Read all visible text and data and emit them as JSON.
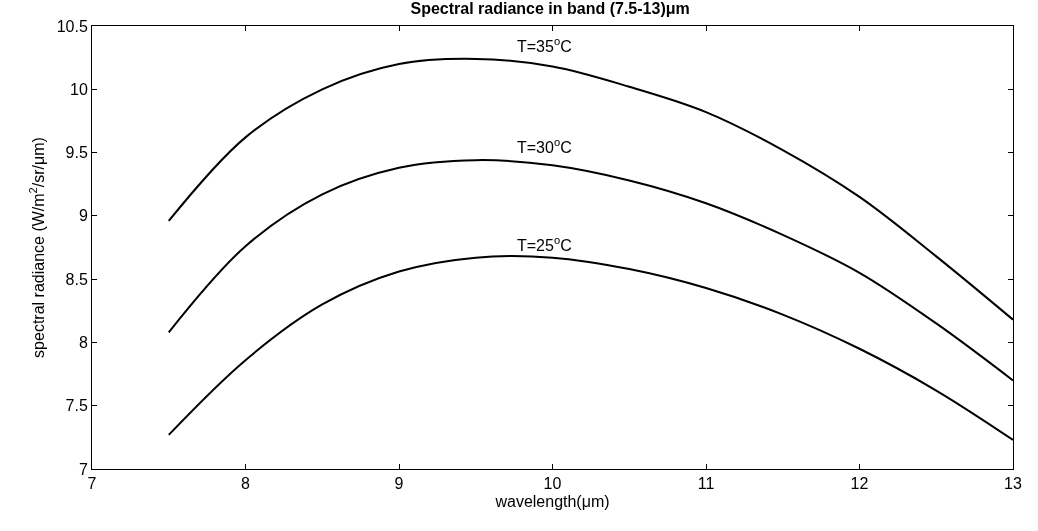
{
  "chart_data": {
    "type": "line",
    "title": "Spectral radiance in band (7.5-13)μm",
    "xlabel": "wavelength(μm)",
    "ylabel": "spectral radiance (W/m$^{2}$/sr/μm)",
    "x": [
      7.5,
      8,
      8.5,
      9,
      9.5,
      10,
      10.5,
      11,
      11.5,
      12,
      12.5,
      13
    ],
    "series": [
      {
        "name": "T=35$^{o}$C",
        "color": "#000000",
        "values": [
          8.96,
          9.62,
          10.0,
          10.2,
          10.24,
          10.18,
          10.02,
          9.82,
          9.52,
          9.15,
          8.68,
          8.18
        ]
      },
      {
        "name": "T=30$^{o}$C",
        "color": "#000000",
        "values": [
          8.08,
          8.76,
          9.17,
          9.38,
          9.44,
          9.4,
          9.28,
          9.1,
          8.85,
          8.55,
          8.15,
          7.7
        ]
      },
      {
        "name": "T=25$^{o}$C",
        "color": "#000000",
        "values": [
          7.27,
          7.86,
          8.3,
          8.56,
          8.67,
          8.67,
          8.58,
          8.43,
          8.22,
          7.95,
          7.62,
          7.23
        ]
      }
    ],
    "xlim": [
      7,
      13
    ],
    "xticks": [
      7,
      8,
      9,
      10,
      11,
      12,
      13
    ],
    "ylim": [
      7,
      10.5
    ],
    "yticks": [
      7,
      7.5,
      8,
      8.5,
      9,
      9.5,
      10,
      10.5
    ],
    "grid": false,
    "marker": "none",
    "line_style": "solid"
  }
}
